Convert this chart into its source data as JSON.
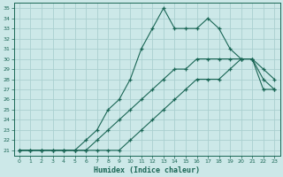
{
  "xlabel": "Humidex (Indice chaleur)",
  "ylabel": "",
  "background_color": "#cce8e8",
  "line_color": "#1a6655",
  "grid_color": "#aad0d0",
  "xlim": [
    -0.5,
    23.5
  ],
  "ylim": [
    20.5,
    35.5
  ],
  "xticks": [
    0,
    1,
    2,
    3,
    4,
    5,
    6,
    7,
    8,
    9,
    10,
    11,
    12,
    13,
    14,
    15,
    16,
    17,
    18,
    19,
    20,
    21,
    22,
    23
  ],
  "yticks": [
    21,
    22,
    23,
    24,
    25,
    26,
    27,
    28,
    29,
    30,
    31,
    32,
    33,
    34,
    35
  ],
  "line1_x": [
    0,
    1,
    2,
    3,
    4,
    5,
    6,
    7,
    8,
    9,
    10,
    11,
    12,
    13,
    14,
    15,
    16,
    17,
    18,
    19,
    20,
    21,
    22,
    23
  ],
  "line1_y": [
    21,
    21,
    21,
    21,
    21,
    21,
    21,
    21,
    21,
    21,
    22,
    23,
    24,
    25,
    26,
    27,
    28,
    28,
    28,
    29,
    30,
    30,
    29,
    28
  ],
  "line2_x": [
    0,
    1,
    2,
    3,
    4,
    5,
    6,
    7,
    8,
    9,
    10,
    11,
    12,
    13,
    14,
    15,
    16,
    17,
    18,
    19,
    20,
    21,
    22,
    23
  ],
  "line2_y": [
    21,
    21,
    21,
    21,
    21,
    21,
    21,
    22,
    23,
    24,
    25,
    26,
    27,
    28,
    29,
    29,
    30,
    30,
    30,
    30,
    30,
    30,
    28,
    27
  ],
  "line3_x": [
    0,
    1,
    2,
    3,
    4,
    5,
    6,
    7,
    8,
    9,
    10,
    11,
    12,
    13,
    14,
    15,
    16,
    17,
    18,
    19,
    20,
    21,
    22,
    23
  ],
  "line3_y": [
    21,
    21,
    21,
    21,
    21,
    21,
    22,
    23,
    25,
    26,
    28,
    31,
    33,
    35,
    33,
    33,
    33,
    34,
    33,
    31,
    30,
    30,
    27,
    27
  ]
}
